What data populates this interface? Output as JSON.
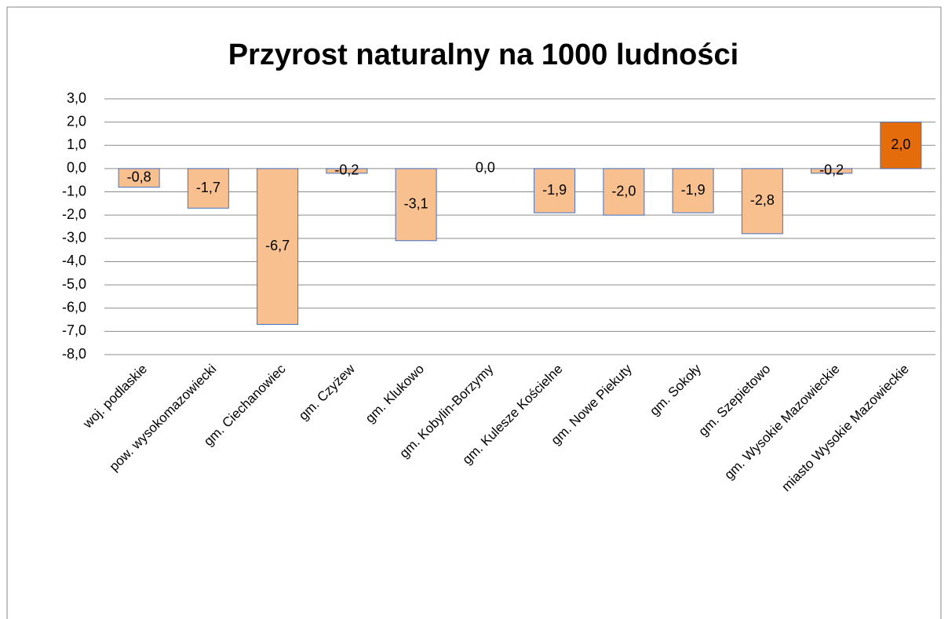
{
  "chart_data": {
    "type": "bar",
    "title": "Przyrost naturalny na 1000 ludności",
    "categories": [
      "woj. podlaskie",
      "pow. wysokomazowiecki",
      "gm. Ciechanowiec",
      "gm. Czyżew",
      "gm. Klukowo",
      "gm. Kobylin-Borzymy",
      "gm. Kulesze Kościelne",
      "gm. Nowe Piekuty",
      "gm. Sokoły",
      "gm. Szepietowo",
      "gm. Wysokie Mazowieckie",
      "miasto Wysokie Mazowieckie"
    ],
    "values": [
      -0.8,
      -1.7,
      -6.7,
      -0.2,
      -3.1,
      0.0,
      -1.9,
      -2.0,
      -1.9,
      -2.8,
      -0.2,
      2.0
    ],
    "value_labels": [
      "-0,8",
      "-1,7",
      "-6,7",
      "-0,2",
      "-3,1",
      "0,0",
      "-1,9",
      "-2,0",
      "-1,9",
      "-2,8",
      "-0,2",
      "2,0"
    ],
    "colors": [
      "#f9c08f",
      "#f9c08f",
      "#f9c08f",
      "#f9c08f",
      "#f9c08f",
      "#f9c08f",
      "#f9c08f",
      "#f9c08f",
      "#f9c08f",
      "#f9c08f",
      "#f9c08f",
      "#e46c0a"
    ],
    "edgecolor": "#4472c4",
    "ylim": [
      -8,
      3
    ],
    "yticks": [
      {
        "value": 3,
        "label": "3,0"
      },
      {
        "value": 2,
        "label": "2,0"
      },
      {
        "value": 1,
        "label": "1,0"
      },
      {
        "value": 0,
        "label": "0,0"
      },
      {
        "value": -1,
        "label": "-1,0"
      },
      {
        "value": -2,
        "label": "-2,0"
      },
      {
        "value": -3,
        "label": "-3,0"
      },
      {
        "value": -4,
        "label": "-4,0"
      },
      {
        "value": -5,
        "label": "-5,0"
      },
      {
        "value": -6,
        "label": "-6,0"
      },
      {
        "value": -7,
        "label": "-7,0"
      },
      {
        "value": -8,
        "label": "-8,0"
      }
    ],
    "grid": true
  }
}
